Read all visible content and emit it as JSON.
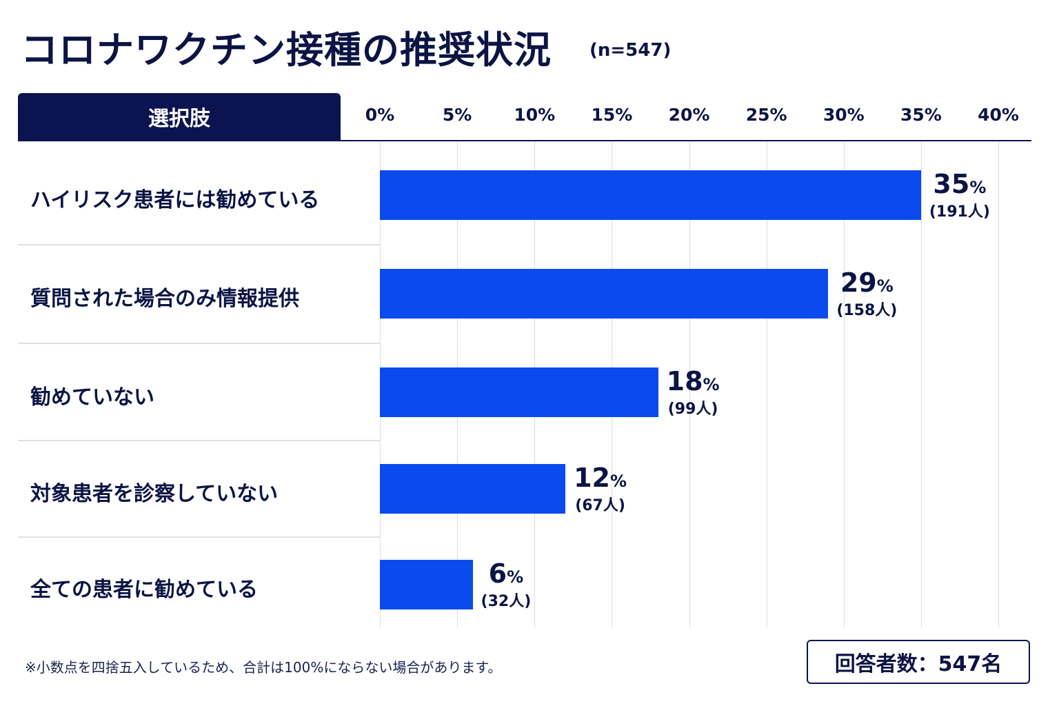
{
  "title": "コロナワクチン接種の推奨状況",
  "subtitle": "(n=547)",
  "header_label": "選択肢",
  "footnote": "※小数点を四捨五入しているため、合計は100%にならない場合があります。",
  "total_label": "回答者数：547名",
  "colors": {
    "bar": "#0a4bf0",
    "navy": "#0b1450"
  },
  "chart_data": {
    "type": "bar",
    "orientation": "horizontal",
    "xlim": [
      0,
      40
    ],
    "ticks": [
      "0%",
      "5%",
      "10%",
      "15%",
      "20%",
      "25%",
      "30%",
      "35%",
      "40%"
    ],
    "tick_values": [
      0,
      5,
      10,
      15,
      20,
      25,
      30,
      35,
      40
    ],
    "categories": [
      "ハイリスク患者には勧めている",
      "質問された場合のみ情報提供",
      "勧めていない",
      "対象患者を診察していない",
      "全ての患者に勧めている"
    ],
    "values": [
      35,
      29,
      18,
      12,
      6
    ],
    "value_labels": [
      "35",
      "29",
      "18",
      "12",
      "6"
    ],
    "percent_suffix": "%",
    "counts": [
      "(191人)",
      "(158人)",
      "(99人)",
      "(67人)",
      "(32人)"
    ],
    "grid": true
  }
}
